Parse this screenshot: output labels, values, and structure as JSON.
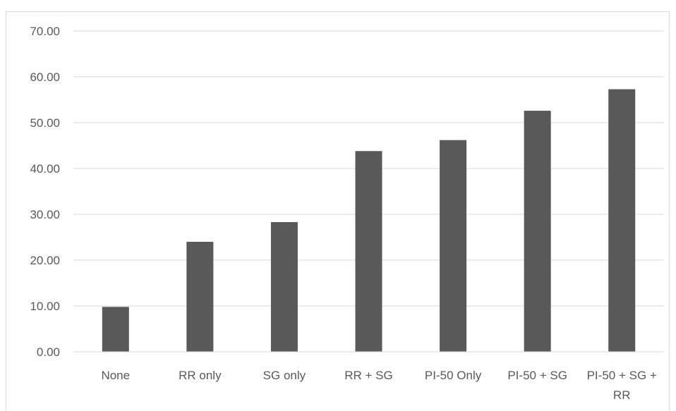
{
  "chart_data": {
    "type": "bar",
    "title": "",
    "xlabel": "",
    "ylabel": "",
    "categories": [
      "None",
      "RR only",
      "SG only",
      "RR + SG",
      "PI-50 Only",
      "PI-50 + SG",
      "PI-50 + SG + RR"
    ],
    "category_lines": [
      [
        "None"
      ],
      [
        "RR only"
      ],
      [
        "SG only"
      ],
      [
        "RR + SG"
      ],
      [
        "PI-50 Only"
      ],
      [
        "PI-50 + SG"
      ],
      [
        "PI-50 + SG +",
        "RR"
      ]
    ],
    "values": [
      9.8,
      24.0,
      28.3,
      43.8,
      46.2,
      52.6,
      57.3
    ],
    "ylim": [
      0,
      70
    ],
    "yticks": [
      0,
      10,
      20,
      30,
      40,
      50,
      60,
      70
    ],
    "ytick_labels": [
      "0.00",
      "10.00",
      "20.00",
      "30.00",
      "40.00",
      "50.00",
      "60.00",
      "70.00"
    ],
    "grid": true,
    "legend": "none",
    "bar_color": "#595959",
    "grid_color": "#d9d9d9"
  }
}
